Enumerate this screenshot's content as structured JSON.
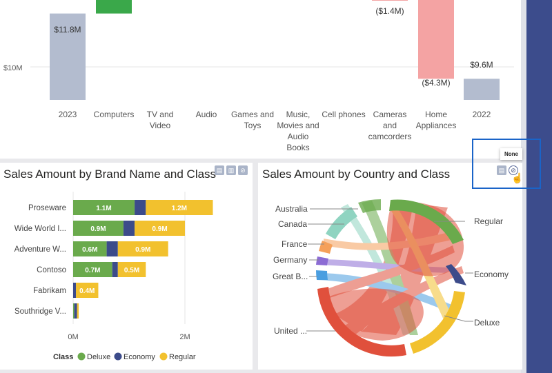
{
  "top_chart": {
    "y_tick": "$10M",
    "categories": [
      {
        "label_lines": [
          "2023"
        ]
      },
      {
        "label_lines": [
          "Computers"
        ]
      },
      {
        "label_lines": [
          "TV and",
          "Video"
        ]
      },
      {
        "label_lines": [
          "Audio"
        ]
      },
      {
        "label_lines": [
          "Games and",
          "Toys"
        ]
      },
      {
        "label_lines": [
          "Music,",
          "Movies and",
          "Audio",
          "Books"
        ]
      },
      {
        "label_lines": [
          "Cell phones"
        ]
      },
      {
        "label_lines": [
          "Cameras",
          "and",
          "camcorders"
        ]
      },
      {
        "label_lines": [
          "Home",
          "Appliances"
        ]
      },
      {
        "label_lines": [
          "2022"
        ]
      }
    ],
    "data_labels": {
      "start": "$11.8M",
      "cameras": "($1.4M)",
      "home_appliances": "($4.3M)",
      "end": "$9.6M"
    }
  },
  "brand_chart": {
    "title": "Sales Amount by Brand Name and Class",
    "x_ticks": [
      "0M",
      "2M"
    ],
    "legend_title": "Class",
    "legend": [
      {
        "name": "Deluxe",
        "color": "#6aaa4c"
      },
      {
        "name": "Economy",
        "color": "#3c4b8a"
      },
      {
        "name": "Regular",
        "color": "#f2c12e"
      }
    ],
    "rows": [
      {
        "label": "Proseware",
        "deluxe_label": "1.1M",
        "regular_label": "1.2M"
      },
      {
        "label": "Wide World I...",
        "deluxe_label": "0.9M",
        "regular_label": "0.9M"
      },
      {
        "label": "Adventure W...",
        "deluxe_label": "0.6M",
        "regular_label": "0.9M"
      },
      {
        "label": "Contoso",
        "deluxe_label": "0.7M",
        "regular_label": "0.5M"
      },
      {
        "label": "Fabrikam",
        "deluxe_label": "",
        "regular_label": "0.4M"
      },
      {
        "label": "Southridge V...",
        "deluxe_label": "",
        "regular_label": ""
      }
    ]
  },
  "country_chart": {
    "title": "Sales Amount by Country and Class",
    "countries": [
      "Australia",
      "Canada",
      "France",
      "Germany",
      "Great B...",
      "United ..."
    ],
    "classes": [
      "Regular",
      "Economy",
      "Deluxe"
    ]
  },
  "tooltip": {
    "text": "None"
  },
  "chart_data": [
    {
      "type": "bar",
      "subtype": "waterfall",
      "categories": [
        "2023",
        "Computers",
        "TV and Video",
        "Audio",
        "Games and Toys",
        "Music, Movies and Audio Books",
        "Cell phones",
        "Cameras and camcorders",
        "Home Appliances",
        "2022"
      ],
      "values": [
        11.8,
        3.5,
        0,
        0,
        0,
        0,
        0,
        -1.4,
        -4.3,
        9.6
      ],
      "ylabel": "",
      "unit": "$M"
    },
    {
      "type": "bar",
      "orientation": "horizontal",
      "stacked": true,
      "title": "Sales Amount by Brand Name and Class",
      "categories": [
        "Proseware",
        "Wide World I...",
        "Adventure W...",
        "Contoso",
        "Fabrikam",
        "Southridge V..."
      ],
      "series": [
        {
          "name": "Deluxe",
          "values": [
            1.1,
            0.9,
            0.6,
            0.7,
            0.0,
            0.02
          ]
        },
        {
          "name": "Economy",
          "values": [
            0.2,
            0.2,
            0.2,
            0.1,
            0.05,
            0.05
          ]
        },
        {
          "name": "Regular",
          "values": [
            1.2,
            0.9,
            0.9,
            0.5,
            0.4,
            0.03
          ]
        }
      ],
      "xlim": [
        0,
        2.9
      ],
      "unit": "M"
    },
    {
      "type": "chord",
      "title": "Sales Amount by Country and Class",
      "nodes": [
        "Australia",
        "Canada",
        "France",
        "Germany",
        "Great B...",
        "United ...",
        "Regular",
        "Economy",
        "Deluxe"
      ],
      "node_colors": {
        "Australia": "#6aaa4c",
        "Canada": "#8fd4c1",
        "France": "#f5a05a",
        "Germany": "#8c6cd4",
        "Great B...": "#4a9ee0",
        "United ...": "#e0503c",
        "Regular": "#6aaa4c",
        "Economy": "#3c4b8a",
        "Deluxe": "#f2c12e"
      }
    }
  ]
}
